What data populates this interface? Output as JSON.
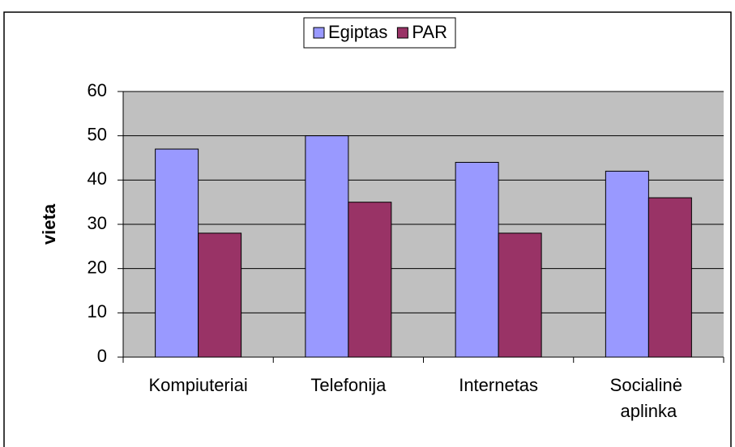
{
  "chart_data": {
    "type": "bar",
    "y_label": "vieta",
    "categories": [
      "Kompiuteriai",
      "Telefonija",
      "Internetas",
      "Socialinė aplinka"
    ],
    "series": [
      {
        "name": "Egiptas",
        "color": "#9999ff",
        "values": [
          47,
          50,
          44,
          42
        ]
      },
      {
        "name": "PAR",
        "color": "#993366",
        "values": [
          28,
          35,
          28,
          36
        ]
      }
    ],
    "ylim": [
      0,
      60
    ],
    "yticks": [
      0,
      10,
      20,
      30,
      40,
      50,
      60
    ],
    "grid": true,
    "legend": "top",
    "plot_background": "#c0c0c0"
  }
}
